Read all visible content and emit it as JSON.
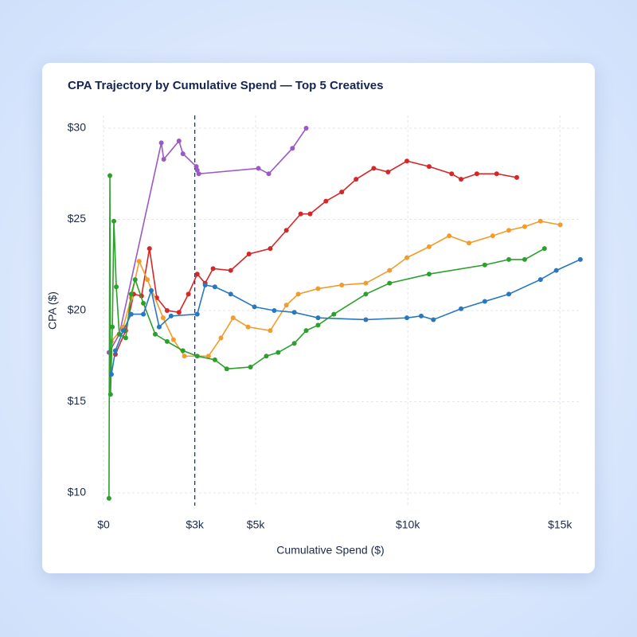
{
  "chart_data": {
    "type": "line",
    "title": "CPA Trajectory by Cumulative Spend — Top 5 Creatives",
    "x_label": "Cumulative Spend ($)",
    "y_label": "CPA ($)",
    "xlim": [
      0,
      15700
    ],
    "ylim": [
      9.3,
      30.7
    ],
    "xticks": [
      {
        "value": 0,
        "label": "$0"
      },
      {
        "value": 3000,
        "label": "$3k"
      },
      {
        "value": 5000,
        "label": "$5k"
      },
      {
        "value": 10000,
        "label": "$10k"
      },
      {
        "value": 15000,
        "label": "$15k"
      }
    ],
    "yticks": [
      {
        "value": 10,
        "label": "$10"
      },
      {
        "value": 15,
        "label": "$15"
      },
      {
        "value": 20,
        "label": "$20"
      },
      {
        "value": 25,
        "label": "$25"
      },
      {
        "value": 30,
        "label": "$30"
      }
    ],
    "grid": true,
    "vline": 3000,
    "series": [
      {
        "color": "#9b59c4",
        "x": [
          180,
          520,
          1900,
          1980,
          2480,
          2610,
          3050,
          3080,
          3130,
          5090,
          5430,
          6210,
          6660
        ],
        "values": [
          17.7,
          18.7,
          29.2,
          28.3,
          29.3,
          28.6,
          27.9,
          27.7,
          27.5,
          27.8,
          27.5,
          28.9,
          30.0
        ]
      },
      {
        "color": "#d62728",
        "x": [
          390,
          730,
          990,
          1250,
          1510,
          1750,
          2090,
          2480,
          2790,
          3080,
          3340,
          3600,
          4180,
          4780,
          5480,
          6010,
          6480,
          6790,
          7310,
          7830,
          8300,
          8880,
          9350,
          9970,
          10700,
          11440,
          11750,
          12270,
          12920,
          13580
        ],
        "values": [
          17.6,
          18.9,
          20.9,
          20.8,
          23.4,
          20.7,
          20.0,
          19.9,
          20.9,
          22.0,
          21.5,
          22.3,
          22.2,
          23.1,
          23.4,
          24.4,
          25.3,
          25.3,
          26.0,
          26.5,
          27.2,
          27.8,
          27.6,
          28.2,
          27.9,
          27.5,
          27.2,
          27.5,
          27.5,
          27.3
        ]
      },
      {
        "color": "#f39c2a",
        "x": [
          260,
          650,
          910,
          1170,
          1440,
          1960,
          2300,
          2660,
          3450,
          3860,
          4260,
          4750,
          5480,
          6010,
          6400,
          7050,
          7830,
          8620,
          9400,
          9970,
          10700,
          11360,
          12010,
          12790,
          13320,
          13840,
          14360,
          15010
        ],
        "values": [
          18.3,
          19.1,
          20.7,
          22.7,
          21.7,
          19.6,
          18.4,
          17.5,
          17.5,
          18.5,
          19.6,
          19.1,
          18.9,
          20.3,
          20.9,
          21.2,
          21.4,
          21.5,
          22.2,
          22.9,
          23.5,
          24.1,
          23.7,
          24.1,
          24.4,
          24.6,
          24.9,
          24.7
        ]
      },
      {
        "color": "#2ca02c",
        "x": [
          180,
          210,
          230,
          290,
          340,
          420,
          520,
          730,
          910,
          1040,
          1310,
          1700,
          2090,
          2610,
          3080,
          3660,
          4050,
          4830,
          5350,
          5740,
          6270,
          6660,
          7050,
          7570,
          8620,
          9400,
          10700,
          12530,
          13320,
          13840,
          14490
        ],
        "values": [
          9.7,
          27.4,
          15.4,
          19.1,
          24.9,
          21.3,
          18.7,
          18.5,
          20.9,
          21.7,
          20.4,
          18.7,
          18.3,
          17.8,
          17.5,
          17.3,
          16.8,
          16.9,
          17.5,
          17.7,
          18.2,
          18.9,
          19.2,
          19.8,
          20.9,
          21.5,
          22.0,
          22.5,
          22.8,
          22.8,
          23.4
        ]
      },
      {
        "color": "#2878c0",
        "x": [
          260,
          390,
          650,
          910,
          1310,
          1570,
          1830,
          2220,
          3080,
          3340,
          3660,
          4180,
          4960,
          5610,
          6270,
          7050,
          8620,
          9970,
          10440,
          10840,
          11750,
          12530,
          13320,
          14360,
          14880,
          15670
        ],
        "values": [
          16.5,
          17.8,
          18.9,
          19.8,
          19.8,
          21.1,
          19.1,
          19.7,
          19.8,
          21.4,
          21.3,
          20.9,
          20.2,
          20.0,
          19.9,
          19.6,
          19.5,
          19.6,
          19.7,
          19.5,
          20.1,
          20.5,
          20.9,
          21.7,
          22.2,
          22.8
        ]
      }
    ]
  }
}
